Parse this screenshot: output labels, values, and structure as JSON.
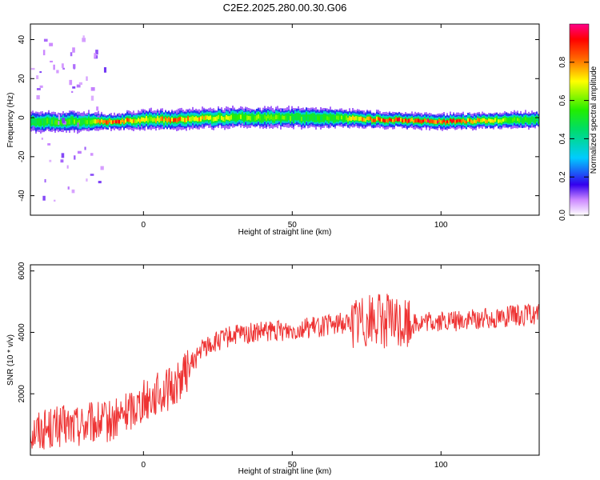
{
  "title": "C2E2.2025.280.00.30.G06",
  "chart_data": [
    {
      "type": "heatmap",
      "xlabel": "Height of straight line (km)",
      "ylabel": "Frequency (Hz)",
      "xlim": [
        -38,
        133
      ],
      "ylim": [
        -50,
        48
      ],
      "xticks": [
        0,
        50,
        100
      ],
      "yticks": [
        -40,
        -20,
        0,
        20,
        40
      ],
      "colorbar": {
        "label": "Normalized spectral amplitude",
        "range": [
          0,
          1
        ],
        "ticks": [
          0.0,
          0.2,
          0.4,
          0.6,
          0.8
        ]
      },
      "band": [
        {
          "x": -38,
          "center": -2,
          "halfwidth": 5,
          "peak": 0.55
        },
        {
          "x": -20,
          "center": -2,
          "halfwidth": 5,
          "peak": 0.6
        },
        {
          "x": -10,
          "center": -2,
          "halfwidth": 4,
          "peak": 0.95
        },
        {
          "x": 0,
          "center": -1,
          "halfwidth": 5,
          "peak": 0.7
        },
        {
          "x": 10,
          "center": -1,
          "halfwidth": 5,
          "peak": 0.85
        },
        {
          "x": 30,
          "center": 0,
          "halfwidth": 5,
          "peak": 0.65
        },
        {
          "x": 60,
          "center": 0,
          "halfwidth": 5,
          "peak": 0.55
        },
        {
          "x": 80,
          "center": -1,
          "halfwidth": 4,
          "peak": 0.9
        },
        {
          "x": 100,
          "center": -2,
          "halfwidth": 4,
          "peak": 0.95
        },
        {
          "x": 133,
          "center": -1,
          "halfwidth": 4,
          "peak": 0.5
        }
      ]
    },
    {
      "type": "line",
      "xlabel": "Height of straight line (km)",
      "ylabel": "SNR (10 * v/v)",
      "xlim": [
        -38,
        133
      ],
      "ylim": [
        0,
        6200
      ],
      "xticks": [
        0,
        50,
        100
      ],
      "yticks": [
        2000,
        4000,
        6000
      ],
      "color": "#ee3333",
      "series": [
        {
          "x": [
            -38,
            -30,
            -20,
            -10,
            0,
            5,
            10,
            15,
            20,
            30,
            40,
            50,
            60,
            70,
            75,
            80,
            85,
            90,
            100,
            110,
            120,
            133
          ],
          "y": [
            800,
            900,
            1000,
            1100,
            1800,
            2000,
            2200,
            2800,
            3500,
            3900,
            4000,
            4100,
            4200,
            4350,
            4450,
            4400,
            4300,
            4300,
            4350,
            4400,
            4500,
            4600
          ]
        }
      ]
    }
  ]
}
